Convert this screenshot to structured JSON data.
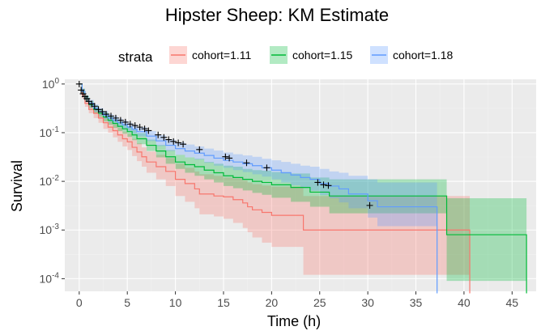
{
  "chart_data": {
    "type": "line",
    "title": "Hipster Sheep: KM Estimate",
    "xlabel": "Time (h)",
    "ylabel": "Survival",
    "xlim": [
      -1.5,
      47.5
    ],
    "ylim": [
      5.5e-05,
      1.25
    ],
    "y_scale": "log",
    "x_ticks": [
      0,
      5,
      10,
      15,
      20,
      25,
      30,
      35,
      40,
      45
    ],
    "x_tick_labels": [
      "0",
      "5",
      "10",
      "15",
      "20",
      "25",
      "30",
      "35",
      "40",
      "45"
    ],
    "y_ticks": [
      1,
      0.1,
      0.01,
      0.001,
      0.0001
    ],
    "y_tick_labels": [
      {
        "base": "10",
        "exp": "0"
      },
      {
        "base": "10",
        "exp": "-1"
      },
      {
        "base": "10",
        "exp": "-2"
      },
      {
        "base": "10",
        "exp": "-3"
      },
      {
        "base": "10",
        "exp": "-4"
      }
    ],
    "grid": true,
    "background": "#ebebeb",
    "legend": {
      "title": "strata",
      "position": "top"
    },
    "series": [
      {
        "name": "cohort=1.11",
        "color": "#f8766d",
        "x": [
          0,
          0.3,
          0.6,
          1,
          1.5,
          2,
          2.5,
          3,
          3.5,
          4,
          4.5,
          5,
          5.5,
          6,
          6.5,
          7,
          8,
          9,
          10,
          11,
          12,
          12.5,
          13,
          14,
          15,
          16,
          17,
          17.5,
          18,
          19,
          20,
          23.3,
          30,
          38,
          40.6
        ],
        "y": [
          1,
          0.6,
          0.4,
          0.3,
          0.25,
          0.2,
          0.16,
          0.13,
          0.11,
          0.09,
          0.075,
          0.065,
          0.05,
          0.04,
          0.032,
          0.025,
          0.02,
          0.016,
          0.011,
          0.009,
          0.007,
          0.0055,
          0.0055,
          0.005,
          0.0048,
          0.0042,
          0.0036,
          0.003,
          0.0026,
          0.0023,
          0.002,
          0.001,
          0.001,
          0.001,
          5e-05
        ],
        "lower": [
          1,
          0.5,
          0.34,
          0.25,
          0.2,
          0.16,
          0.12,
          0.1,
          0.08,
          0.065,
          0.052,
          0.044,
          0.033,
          0.026,
          0.02,
          0.015,
          0.011,
          0.008,
          0.005,
          0.0038,
          0.0028,
          0.0021,
          0.0021,
          0.0019,
          0.0017,
          0.0014,
          0.0011,
          0.0009,
          0.0007,
          0.00055,
          0.00045,
          0.00012,
          0.00012,
          0.00012,
          5e-05
        ],
        "upper": [
          1,
          0.72,
          0.5,
          0.38,
          0.32,
          0.26,
          0.21,
          0.17,
          0.15,
          0.125,
          0.105,
          0.095,
          0.075,
          0.061,
          0.05,
          0.041,
          0.035,
          0.03,
          0.023,
          0.019,
          0.016,
          0.014,
          0.014,
          0.013,
          0.012,
          0.0115,
          0.0105,
          0.0095,
          0.0088,
          0.0082,
          0.0078,
          0.005,
          0.005,
          0.005,
          0.005
        ]
      },
      {
        "name": "cohort=1.15",
        "color": "#00ba38",
        "x": [
          0,
          0.3,
          0.6,
          1,
          1.5,
          2,
          2.5,
          3,
          3.5,
          4,
          4.5,
          5,
          5.5,
          6,
          7,
          8,
          9,
          10,
          11,
          12,
          13,
          14,
          15,
          16,
          17,
          18,
          19,
          20,
          22,
          24,
          26,
          38.2,
          46.5
        ],
        "y": [
          1,
          0.7,
          0.5,
          0.38,
          0.3,
          0.25,
          0.21,
          0.18,
          0.155,
          0.135,
          0.12,
          0.105,
          0.09,
          0.075,
          0.055,
          0.042,
          0.032,
          0.025,
          0.022,
          0.02,
          0.017,
          0.015,
          0.013,
          0.012,
          0.011,
          0.01,
          0.0095,
          0.0085,
          0.0075,
          0.006,
          0.005,
          0.0008,
          5e-05
        ],
        "lower": [
          1,
          0.62,
          0.44,
          0.32,
          0.25,
          0.21,
          0.17,
          0.145,
          0.125,
          0.108,
          0.095,
          0.082,
          0.07,
          0.058,
          0.042,
          0.031,
          0.023,
          0.018,
          0.015,
          0.013,
          0.011,
          0.0095,
          0.008,
          0.0072,
          0.0065,
          0.0058,
          0.0053,
          0.0046,
          0.0038,
          0.003,
          0.0022,
          9e-05,
          5e-05
        ],
        "upper": [
          1,
          0.8,
          0.58,
          0.45,
          0.36,
          0.3,
          0.26,
          0.22,
          0.19,
          0.17,
          0.15,
          0.135,
          0.115,
          0.098,
          0.072,
          0.056,
          0.044,
          0.035,
          0.031,
          0.029,
          0.025,
          0.023,
          0.021,
          0.02,
          0.018,
          0.017,
          0.0165,
          0.0155,
          0.0145,
          0.012,
          0.011,
          0.0045,
          0.0045
        ]
      },
      {
        "name": "cohort=1.18",
        "color": "#619cff",
        "x": [
          0,
          0.3,
          0.6,
          1,
          1.5,
          2,
          2.5,
          3,
          3.5,
          4,
          4.5,
          5,
          5.5,
          6,
          7,
          8,
          9,
          10,
          11,
          12,
          13,
          14,
          15,
          16,
          17,
          18,
          19,
          20,
          21,
          22,
          23,
          24,
          25,
          26,
          27,
          28,
          30,
          31,
          37.2
        ],
        "y": [
          1,
          0.7,
          0.5,
          0.4,
          0.32,
          0.27,
          0.23,
          0.2,
          0.18,
          0.16,
          0.145,
          0.13,
          0.118,
          0.105,
          0.085,
          0.068,
          0.055,
          0.047,
          0.042,
          0.038,
          0.034,
          0.03,
          0.027,
          0.025,
          0.023,
          0.021,
          0.019,
          0.017,
          0.015,
          0.0135,
          0.012,
          0.011,
          0.009,
          0.008,
          0.007,
          0.0055,
          0.004,
          0.003,
          5e-05
        ],
        "lower": [
          1,
          0.62,
          0.44,
          0.34,
          0.27,
          0.23,
          0.19,
          0.165,
          0.15,
          0.132,
          0.118,
          0.105,
          0.095,
          0.084,
          0.067,
          0.053,
          0.042,
          0.035,
          0.031,
          0.028,
          0.024,
          0.021,
          0.019,
          0.017,
          0.0155,
          0.014,
          0.0125,
          0.011,
          0.0095,
          0.0083,
          0.0072,
          0.0064,
          0.0052,
          0.0045,
          0.0037,
          0.0028,
          0.0018,
          0.0012,
          5e-05
        ],
        "upper": [
          1,
          0.8,
          0.58,
          0.47,
          0.38,
          0.32,
          0.28,
          0.24,
          0.22,
          0.195,
          0.178,
          0.16,
          0.146,
          0.13,
          0.108,
          0.088,
          0.072,
          0.063,
          0.057,
          0.052,
          0.047,
          0.043,
          0.039,
          0.036,
          0.034,
          0.032,
          0.029,
          0.027,
          0.025,
          0.023,
          0.021,
          0.02,
          0.018,
          0.016,
          0.015,
          0.013,
          0.011,
          0.0095,
          0.0095
        ]
      }
    ],
    "censor_marks": [
      {
        "x": 0,
        "y": 1
      },
      {
        "x": 0.2,
        "y": 0.75
      },
      {
        "x": 0.4,
        "y": 0.63
      },
      {
        "x": 0.6,
        "y": 0.55
      },
      {
        "x": 0.8,
        "y": 0.5
      },
      {
        "x": 1.0,
        "y": 0.44
      },
      {
        "x": 1.3,
        "y": 0.39
      },
      {
        "x": 1.6,
        "y": 0.35
      },
      {
        "x": 2.0,
        "y": 0.3
      },
      {
        "x": 2.4,
        "y": 0.27
      },
      {
        "x": 2.8,
        "y": 0.24
      },
      {
        "x": 3.3,
        "y": 0.22
      },
      {
        "x": 3.8,
        "y": 0.2
      },
      {
        "x": 4.3,
        "y": 0.18
      },
      {
        "x": 4.8,
        "y": 0.165
      },
      {
        "x": 5.3,
        "y": 0.15
      },
      {
        "x": 5.8,
        "y": 0.14
      },
      {
        "x": 6.3,
        "y": 0.13
      },
      {
        "x": 6.8,
        "y": 0.12
      },
      {
        "x": 7.2,
        "y": 0.11
      },
      {
        "x": 8.2,
        "y": 0.09
      },
      {
        "x": 8.8,
        "y": 0.08
      },
      {
        "x": 9.3,
        "y": 0.072
      },
      {
        "x": 9.8,
        "y": 0.066
      },
      {
        "x": 10.3,
        "y": 0.062
      },
      {
        "x": 10.8,
        "y": 0.058
      },
      {
        "x": 12.5,
        "y": 0.045
      },
      {
        "x": 15.2,
        "y": 0.032
      },
      {
        "x": 15.6,
        "y": 0.03
      },
      {
        "x": 17.4,
        "y": 0.024
      },
      {
        "x": 19.5,
        "y": 0.019
      },
      {
        "x": 24.8,
        "y": 0.0095
      },
      {
        "x": 25.4,
        "y": 0.0085
      },
      {
        "x": 25.9,
        "y": 0.0082
      },
      {
        "x": 30.2,
        "y": 0.0032
      }
    ]
  }
}
